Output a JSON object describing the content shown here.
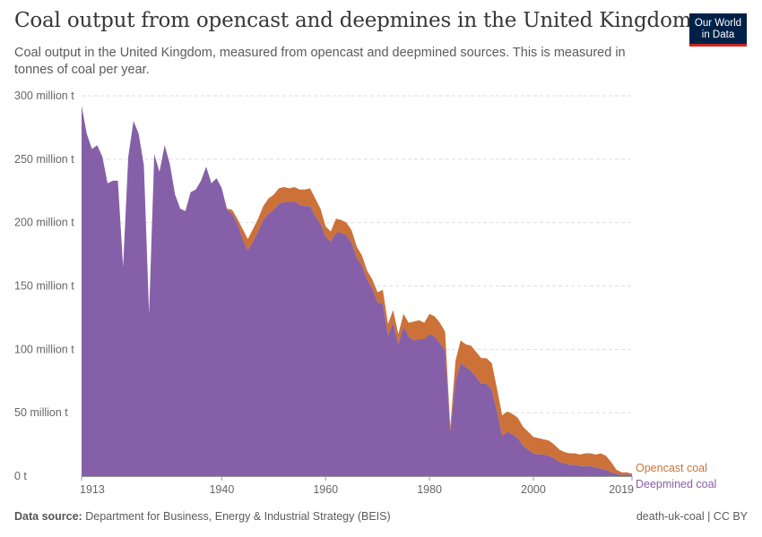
{
  "title": "Coal output from opencast and deepmines in the United Kingdom",
  "subtitle": "Coal output in the United Kingdom, measured from opencast and deepmined sources. This is measured in tonnes of coal per year.",
  "logo": {
    "line1": "Our World",
    "line2": "in Data"
  },
  "footer": {
    "source_label": "Data source:",
    "source_text": "Department for Business, Energy & Industrial Strategy (BEIS)",
    "right_text": "death-uk-coal | CC BY"
  },
  "colors": {
    "deepmined": "#8560a8",
    "opencast": "#cc7238",
    "grid": "#dddddd",
    "axis": "#999999"
  },
  "chart_data": {
    "type": "area",
    "stacked": true,
    "ylim": [
      0,
      300000000
    ],
    "xlim": [
      1913,
      2019
    ],
    "y_ticks": [
      {
        "value": 0,
        "label": "0 t"
      },
      {
        "value": 50000000,
        "label": "50 million t"
      },
      {
        "value": 100000000,
        "label": "100 million t"
      },
      {
        "value": 150000000,
        "label": "150 million t"
      },
      {
        "value": 200000000,
        "label": "200 million t"
      },
      {
        "value": 250000000,
        "label": "250 million t"
      },
      {
        "value": 300000000,
        "label": "300 million t"
      }
    ],
    "x_ticks": [
      {
        "value": 1913,
        "label": "1913"
      },
      {
        "value": 1940,
        "label": "1940"
      },
      {
        "value": 1960,
        "label": "1960"
      },
      {
        "value": 1980,
        "label": "1980"
      },
      {
        "value": 2000,
        "label": "2000"
      },
      {
        "value": 2019,
        "label": "2019"
      }
    ],
    "grid": true,
    "legend": "right-end-labels",
    "x": [
      1913,
      1914,
      1915,
      1916,
      1917,
      1918,
      1919,
      1920,
      1921,
      1922,
      1923,
      1924,
      1925,
      1926,
      1927,
      1928,
      1929,
      1930,
      1931,
      1932,
      1933,
      1934,
      1935,
      1936,
      1937,
      1938,
      1939,
      1940,
      1941,
      1942,
      1943,
      1944,
      1945,
      1946,
      1947,
      1948,
      1949,
      1950,
      1951,
      1952,
      1953,
      1954,
      1955,
      1956,
      1957,
      1958,
      1959,
      1960,
      1961,
      1962,
      1963,
      1964,
      1965,
      1966,
      1967,
      1968,
      1969,
      1970,
      1971,
      1972,
      1973,
      1974,
      1975,
      1976,
      1977,
      1978,
      1979,
      1980,
      1981,
      1982,
      1983,
      1984,
      1985,
      1986,
      1987,
      1988,
      1989,
      1990,
      1991,
      1992,
      1993,
      1994,
      1995,
      1996,
      1997,
      1998,
      1999,
      2000,
      2001,
      2002,
      2003,
      2004,
      2005,
      2006,
      2007,
      2008,
      2009,
      2010,
      2011,
      2012,
      2013,
      2014,
      2015,
      2016,
      2017,
      2018,
      2019
    ],
    "series": [
      {
        "name": "Deepmined coal",
        "values": [
          292,
          270,
          258,
          261,
          252,
          231,
          233,
          233,
          165,
          252,
          280,
          270,
          245,
          128,
          254,
          240,
          261,
          246,
          222,
          211,
          209,
          224,
          226,
          233,
          244,
          231,
          235,
          227,
          210,
          207,
          199,
          187,
          178,
          185,
          193,
          202,
          207,
          210,
          215,
          216,
          216,
          217,
          214,
          213,
          213,
          205,
          199,
          189,
          185,
          192,
          192,
          190,
          184,
          172,
          166,
          155,
          148,
          137,
          136,
          111,
          121,
          104,
          118,
          110,
          107,
          108,
          108,
          112,
          110,
          105,
          99,
          35,
          75,
          89,
          86,
          83,
          78,
          73,
          73,
          68,
          51,
          32,
          35,
          33,
          30,
          24,
          21,
          18,
          17,
          17,
          16,
          14,
          11,
          10,
          9,
          9,
          8,
          8,
          8,
          7,
          6,
          5,
          3,
          2,
          1,
          1,
          1
        ]
      },
      {
        "name": "Opencast coal",
        "values": [
          0,
          0,
          0,
          0,
          0,
          0,
          0,
          0,
          0,
          0,
          0,
          0,
          0,
          0,
          0,
          0,
          0,
          0,
          0,
          0,
          0,
          0,
          0,
          0,
          0,
          0,
          0,
          0,
          1,
          3,
          4,
          8,
          9,
          10,
          10,
          11,
          12,
          12,
          12,
          12,
          11,
          11,
          12,
          13,
          14,
          14,
          12,
          8,
          8,
          11,
          10,
          10,
          10,
          9,
          8,
          7,
          7,
          8,
          11,
          9,
          10,
          8,
          10,
          11,
          15,
          15,
          13,
          16,
          16,
          16,
          15,
          4,
          16,
          18,
          18,
          20,
          20,
          20,
          20,
          21,
          18,
          16,
          16,
          16,
          16,
          15,
          14,
          13,
          13,
          12,
          12,
          11,
          10,
          9,
          9,
          9,
          9,
          10,
          10,
          10,
          12,
          11,
          8,
          3,
          2,
          2,
          1
        ]
      }
    ],
    "values_scale": "million t"
  }
}
